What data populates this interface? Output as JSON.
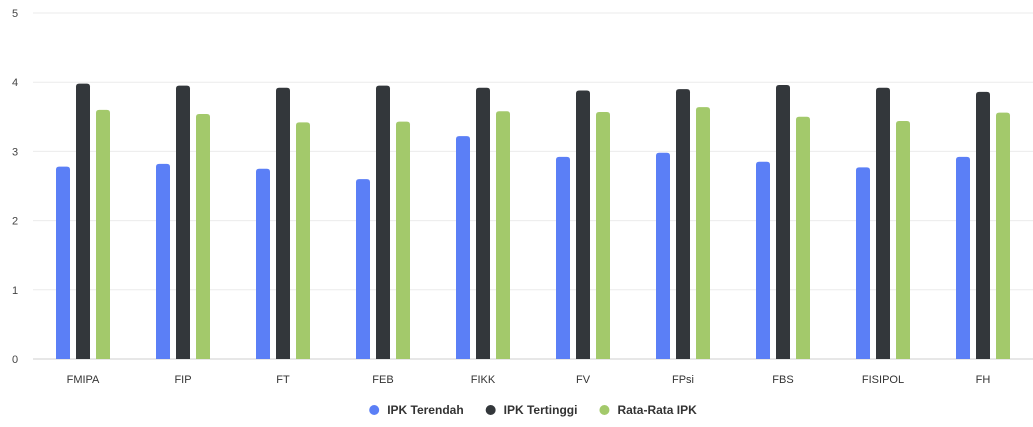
{
  "chart_data": {
    "type": "bar",
    "categories": [
      "FMIPA",
      "FIP",
      "FT",
      "FEB",
      "FIKK",
      "FV",
      "FPsi",
      "FBS",
      "FISIPOL",
      "FH"
    ],
    "series": [
      {
        "name": "IPK Terendah",
        "color": "#5b7ff6",
        "values": [
          2.78,
          2.82,
          2.75,
          2.6,
          3.22,
          2.92,
          2.98,
          2.85,
          2.77,
          2.92
        ]
      },
      {
        "name": "IPK Tertinggi",
        "color": "#33373b",
        "values": [
          3.98,
          3.95,
          3.92,
          3.95,
          3.92,
          3.88,
          3.9,
          3.96,
          3.92,
          3.86
        ]
      },
      {
        "name": "Rata-Rata IPK",
        "color": "#a3c96b",
        "values": [
          3.6,
          3.54,
          3.42,
          3.43,
          3.58,
          3.57,
          3.64,
          3.5,
          3.44,
          3.56
        ]
      }
    ],
    "y_ticks": [
      "0",
      "1",
      "2",
      "3",
      "4",
      "5"
    ],
    "ylim": [
      0,
      5
    ],
    "grid": true,
    "legend_position": "bottom-center",
    "title": "",
    "xlabel": "",
    "ylabel": ""
  }
}
